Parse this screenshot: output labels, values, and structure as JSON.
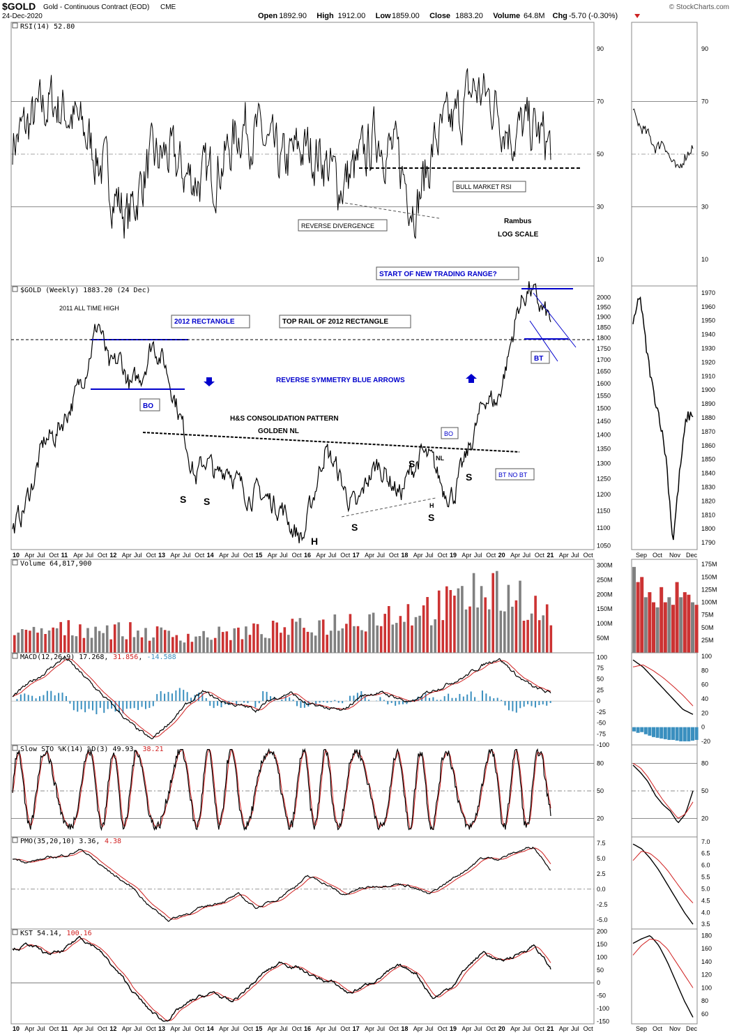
{
  "header": {
    "symbol": "$GOLD",
    "name": "Gold - Continuous Contract (EOD)",
    "exchange": "CME",
    "date": "24-Dec-2020",
    "copyright": "© StockCharts.com",
    "quote": {
      "open_label": "Open",
      "open": "1892.90",
      "high_label": "High",
      "high": "1912.00",
      "low_label": "Low",
      "low": "1859.00",
      "close_label": "Close",
      "close": "1883.20",
      "volume_label": "Volume",
      "volume": "64.8M",
      "chg_label": "Chg",
      "chg": "-5.70 (-0.30%)"
    }
  },
  "colors": {
    "price": "#000000",
    "up_volume": "#808080",
    "down_volume": "#cc3333",
    "signal": "#d02020",
    "histogram": "#3a8fbf",
    "annotation": "#0000cc",
    "rsi_fill": "#4f7a4f"
  },
  "chart_data": [
    {
      "type": "line",
      "title": "RSI(14) 52.80",
      "indicator": "RSI",
      "ylim": [
        0,
        100
      ],
      "yticks": [
        10,
        30,
        50,
        70,
        90
      ],
      "reference_lines": [
        30,
        50,
        70
      ],
      "x": [
        "2010",
        "2011",
        "2012",
        "2013",
        "2014",
        "2015",
        "2016",
        "2017",
        "2018",
        "2019",
        "2020",
        "2021"
      ],
      "series": [
        {
          "values": [
            52,
            62,
            60,
            45,
            40,
            42,
            48,
            50,
            55,
            55,
            62,
            52.8
          ]
        }
      ],
      "annotations": [
        "BULL MARKET RSI",
        "REVERSE DIVERGENCE",
        "Rambus",
        "LOG SCALE"
      ]
    },
    {
      "type": "line",
      "title": "$GOLD (Weekly) 1883.20 (24 Dec)",
      "log_scale": true,
      "ylim": [
        1040,
        2060
      ],
      "yticks": [
        1050,
        1100,
        1150,
        1200,
        1250,
        1300,
        1350,
        1400,
        1450,
        1500,
        1550,
        1600,
        1650,
        1700,
        1750,
        1800,
        1850,
        1900,
        1950,
        2000
      ],
      "x": [
        "10",
        "11",
        "12",
        "13",
        "14",
        "15",
        "16",
        "17",
        "18",
        "19",
        "20",
        "21"
      ],
      "x_axis_labels": [
        "10",
        "Apr",
        "Jul",
        "Oct",
        "11",
        "Apr",
        "Jul",
        "Oct",
        "12",
        "Apr",
        "Jul",
        "Oct",
        "13",
        "Apr",
        "Jul",
        "Oct",
        "14",
        "Apr",
        "Jul",
        "Oct",
        "15",
        "Apr",
        "Jul",
        "Oct",
        "16",
        "Apr",
        "Jul",
        "Oct",
        "17",
        "Apr",
        "Jul",
        "Oct",
        "18",
        "Apr",
        "Jul",
        "Oct",
        "19",
        "Apr",
        "Jul",
        "Oct",
        "20",
        "Apr",
        "Jul",
        "Oct",
        "21",
        "Apr",
        "Jul",
        "Oct"
      ],
      "series": [
        {
          "values": [
            1100,
            1400,
            1650,
            1200,
            1250,
            1180,
            1150,
            1200,
            1300,
            1350,
            1550,
            1883.2
          ]
        }
      ],
      "annotations": [
        "2011 ALL TIME HIGH",
        "2012 RECTANGLE",
        "TOP RAIL OF 2012 RECTANGLE",
        "BO",
        "REVERSE SYMMETRY BLUE ARROWS",
        "H&S CONSOLIDATION PATTERN",
        "GOLDEN NL",
        "NL",
        "BO",
        "BT NO BT",
        "START OF NEW TRADING RANGE?",
        "BT",
        "S",
        "S",
        "H",
        "S",
        "S",
        "S",
        "S",
        "H"
      ]
    },
    {
      "type": "bar",
      "title": "Volume 64,817,900",
      "indicator": "Volume",
      "ylim": [
        0,
        320000000
      ],
      "yticks": [
        "50M",
        "100M",
        "150M",
        "200M",
        "250M",
        "300M"
      ]
    },
    {
      "type": "line",
      "title": "MACD(12,26,9) 17.268, 31.856, -14.588",
      "indicator": "MACD",
      "ylim": [
        -100,
        110
      ],
      "yticks": [
        100,
        75,
        50,
        25,
        0,
        -25,
        -50,
        -75,
        -100
      ],
      "series": [
        {
          "name": "MACD",
          "values": [
            17.268
          ]
        },
        {
          "name": "Signal",
          "values": [
            31.856
          ]
        },
        {
          "name": "Histogram",
          "values": [
            -14.588
          ]
        }
      ]
    },
    {
      "type": "line",
      "title": "Slow STO %K(14) %D(3) 49.93, 38.21",
      "indicator": "STO",
      "ylim": [
        0,
        100
      ],
      "yticks": [
        20,
        50,
        80
      ],
      "reference_lines": [
        20,
        50,
        80
      ],
      "series": [
        {
          "name": "%K",
          "values": [
            49.93
          ]
        },
        {
          "name": "%D",
          "values": [
            38.21
          ]
        }
      ]
    },
    {
      "type": "line",
      "title": "PMO(35,20,10) 3.36, 4.38",
      "indicator": "PMO",
      "ylim": [
        -6.5,
        8.5
      ],
      "yticks": [
        7.5,
        5.0,
        2.5,
        0.0,
        -2.5,
        -5.0
      ],
      "series": [
        {
          "name": "PMO",
          "values": [
            3.36
          ]
        },
        {
          "name": "Signal",
          "values": [
            4.38
          ]
        }
      ]
    },
    {
      "type": "line",
      "title": "KST 54.14, 100.16",
      "indicator": "KST",
      "ylim": [
        -160,
        210
      ],
      "yticks": [
        200,
        150,
        100,
        50,
        0,
        -50,
        -100,
        -150
      ],
      "series": [
        {
          "name": "KST",
          "values": [
            54.14
          ]
        },
        {
          "name": "Signal",
          "values": [
            100.16
          ]
        }
      ]
    }
  ],
  "side_panels": {
    "x_axis_labels": [
      "Sep",
      "Oct",
      "Nov",
      "Dec"
    ],
    "rsi_ticks": [
      10,
      30,
      50,
      70,
      90
    ],
    "price_ticks": [
      1790,
      1800,
      1810,
      1820,
      1830,
      1840,
      1850,
      1860,
      1870,
      1880,
      1890,
      1900,
      1910,
      1920,
      1930,
      1940,
      1950,
      1960,
      1970
    ],
    "volume_ticks": [
      "25M",
      "50M",
      "75M",
      "100M",
      "125M",
      "150M",
      "175M"
    ],
    "macd_ticks": [
      100,
      80,
      60,
      40,
      20,
      0,
      -20
    ],
    "sto_ticks": [
      20,
      50,
      80
    ],
    "pmo_ticks": [
      "7.0",
      "6.5",
      "6.0",
      "5.5",
      "5.0",
      "4.5",
      "4.0",
      "3.5"
    ],
    "kst_ticks": [
      60,
      80,
      100,
      120,
      140,
      160,
      180
    ]
  }
}
